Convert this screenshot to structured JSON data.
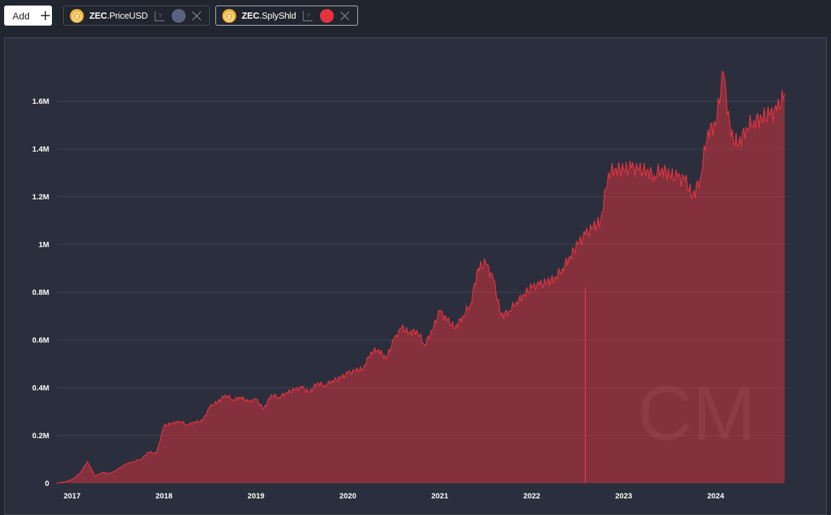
{
  "toolbar": {
    "add_label": "Add",
    "series_chips": [
      {
        "asset": "ZEC",
        "metric": ".PriceUSD",
        "color": "#5b6180",
        "active": false
      },
      {
        "asset": "ZEC",
        "metric": ".SplyShld",
        "color": "#e5333f",
        "active": true
      }
    ],
    "axis_icon_label": "Y"
  },
  "watermark": "CM",
  "chart_data": {
    "type": "area",
    "series": [
      {
        "metric": "ZEC.SplyShld",
        "color": "#e5333f",
        "x": [
          "2016-11",
          "2016-12",
          "2017-01",
          "2017-02",
          "2017-03",
          "2017-04",
          "2017-05",
          "2017-06",
          "2017-07",
          "2017-08",
          "2017-09",
          "2017-10",
          "2017-11",
          "2017-12",
          "2018-01",
          "2018-02",
          "2018-03",
          "2018-04",
          "2018-05",
          "2018-06",
          "2018-07",
          "2018-08",
          "2018-09",
          "2018-10",
          "2018-11",
          "2018-12",
          "2019-01",
          "2019-02",
          "2019-03",
          "2019-04",
          "2019-05",
          "2019-06",
          "2019-07",
          "2019-08",
          "2019-09",
          "2019-10",
          "2019-11",
          "2019-12",
          "2020-01",
          "2020-02",
          "2020-03",
          "2020-04",
          "2020-05",
          "2020-06",
          "2020-07",
          "2020-08",
          "2020-09",
          "2020-10",
          "2020-11",
          "2020-12",
          "2021-01",
          "2021-02",
          "2021-03",
          "2021-04",
          "2021-05",
          "2021-06",
          "2021-07",
          "2021-08",
          "2021-09",
          "2021-10",
          "2021-11",
          "2021-12",
          "2022-01",
          "2022-02",
          "2022-03",
          "2022-04",
          "2022-05",
          "2022-06",
          "2022-07",
          "2022-08",
          "2022-09",
          "2022-10",
          "2022-11",
          "2022-12",
          "2023-01",
          "2023-02",
          "2023-03",
          "2023-04",
          "2023-05",
          "2023-06",
          "2023-07",
          "2023-08",
          "2023-09",
          "2023-10",
          "2023-11",
          "2023-12",
          "2024-01",
          "2024-02",
          "2024-03",
          "2024-04",
          "2024-05",
          "2024-06",
          "2024-07",
          "2024-08",
          "2024-09",
          "2024-10"
        ],
        "values": [
          0,
          5000,
          15000,
          40000,
          90000,
          30000,
          45000,
          40000,
          60000,
          80000,
          90000,
          100000,
          130000,
          125000,
          240000,
          250000,
          260000,
          245000,
          255000,
          260000,
          320000,
          340000,
          370000,
          350000,
          360000,
          340000,
          350000,
          310000,
          370000,
          360000,
          380000,
          390000,
          400000,
          380000,
          420000,
          410000,
          430000,
          440000,
          460000,
          470000,
          480000,
          550000,
          560000,
          520000,
          600000,
          650000,
          630000,
          640000,
          580000,
          640000,
          720000,
          680000,
          650000,
          700000,
          750000,
          900000,
          920000,
          850000,
          700000,
          720000,
          760000,
          790000,
          820000,
          830000,
          840000,
          860000,
          900000,
          950000,
          1000000,
          1040000,
          1070000,
          1100000,
          1300000,
          1320000,
          1310000,
          1320000,
          1310000,
          1310000,
          1290000,
          1320000,
          1290000,
          1280000,
          1270000,
          1200000,
          1280000,
          1480000,
          1500000,
          1720000,
          1450000,
          1420000,
          1490000,
          1520000,
          1530000,
          1540000,
          1560000,
          1630000
        ],
        "annotations": [
          {
            "x": "2022-08",
            "y": 820000,
            "kind": "vertical-line"
          }
        ]
      }
    ],
    "title": "",
    "xlabel": "",
    "ylabel": "",
    "y_ticks": [
      "0",
      "0.2M",
      "0.4M",
      "0.6M",
      "0.8M",
      "1M",
      "1.2M",
      "1.4M",
      "1.6M"
    ],
    "y_tick_values": [
      0,
      200000,
      400000,
      600000,
      800000,
      1000000,
      1200000,
      1400000,
      1600000
    ],
    "x_ticks": [
      "2017",
      "2018",
      "2019",
      "2020",
      "2021",
      "2022",
      "2023",
      "2024"
    ],
    "ylim": [
      0,
      1850000
    ],
    "xlim": [
      "2016-11",
      "2024-10"
    ],
    "grid": true,
    "legend": "none"
  }
}
